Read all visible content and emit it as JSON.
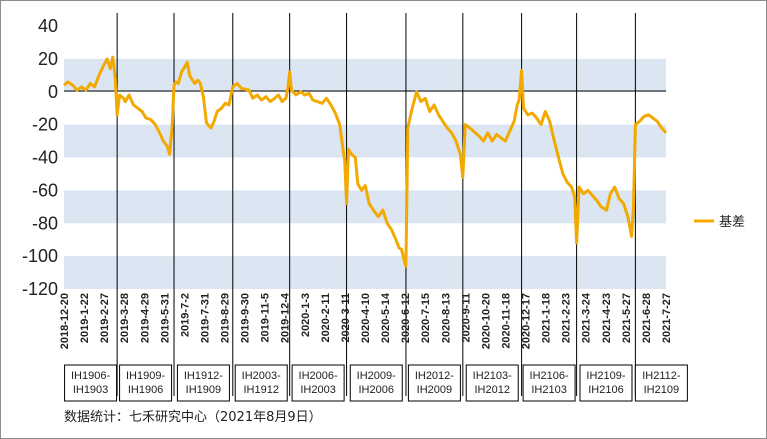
{
  "chart_data": {
    "type": "line",
    "ylim": [
      -120,
      40
    ],
    "yticks": [
      40,
      20,
      0,
      -20,
      -40,
      -60,
      -80,
      -100,
      -120
    ],
    "x_range": [
      "2018-12-20",
      "2021-08-09"
    ],
    "x_ticks": [
      "2018-12-20",
      "2019-1-22",
      "2019-2-27",
      "2019-3-28",
      "2019-4-29",
      "2019-5-31",
      "2019-7-2",
      "2019-7-31",
      "2019-8-29",
      "2019-9-30",
      "2019-11-5",
      "2019-12-4",
      "2020-1-3",
      "2020-2-11",
      "2020-3-11",
      "2020-4-10",
      "2020-5-14",
      "2020-6-12",
      "2020-7-15",
      "2020-8-13",
      "2020-9-11",
      "2020-10-20",
      "2020-11-18",
      "2020-12-17",
      "2021-1-18",
      "2021-2-23",
      "2021-3-24",
      "2021-4-23",
      "2021-5-27",
      "2021-6-28",
      "2021-7-27"
    ],
    "grid": "alternating horizontal bands",
    "legend_position": "right",
    "colors": {
      "series": "#f2a900",
      "band": "#dce6f2",
      "divider": "#000000"
    },
    "series": [
      {
        "name": "基差",
        "points": [
          [
            "2018-12-20",
            4
          ],
          [
            "2018-12-26",
            6
          ],
          [
            "2019-1-3",
            4
          ],
          [
            "2019-1-10",
            1
          ],
          [
            "2019-1-17",
            3
          ],
          [
            "2019-1-24",
            1
          ],
          [
            "2019-1-31",
            5
          ],
          [
            "2019-2-7",
            3
          ],
          [
            "2019-2-14",
            10
          ],
          [
            "2019-2-20",
            15
          ],
          [
            "2019-2-27",
            20
          ],
          [
            "2019-3-4",
            14
          ],
          [
            "2019-3-8",
            21
          ],
          [
            "2019-3-12",
            8
          ],
          [
            "2019-3-15",
            -14
          ],
          [
            "2019-3-19",
            -2
          ],
          [
            "2019-3-25",
            -4
          ],
          [
            "2019-3-28",
            -6
          ],
          [
            "2019-4-3",
            -2
          ],
          [
            "2019-4-10",
            -8
          ],
          [
            "2019-4-17",
            -10
          ],
          [
            "2019-4-24",
            -12
          ],
          [
            "2019-4-30",
            -16
          ],
          [
            "2019-5-8",
            -17
          ],
          [
            "2019-5-15",
            -20
          ],
          [
            "2019-5-22",
            -25
          ],
          [
            "2019-5-28",
            -30
          ],
          [
            "2019-6-3",
            -33
          ],
          [
            "2019-6-7",
            -38
          ],
          [
            "2019-6-11",
            -22
          ],
          [
            "2019-6-14",
            4
          ],
          [
            "2019-6-17",
            6
          ],
          [
            "2019-6-21",
            5
          ],
          [
            "2019-6-26",
            12
          ],
          [
            "2019-7-1",
            15
          ],
          [
            "2019-7-5",
            18
          ],
          [
            "2019-7-9",
            10
          ],
          [
            "2019-7-12",
            8
          ],
          [
            "2019-7-17",
            5
          ],
          [
            "2019-7-22",
            7
          ],
          [
            "2019-7-26",
            5
          ],
          [
            "2019-7-31",
            -3
          ],
          [
            "2019-8-5",
            -19
          ],
          [
            "2019-8-12",
            -22
          ],
          [
            "2019-8-16",
            -19
          ],
          [
            "2019-8-22",
            -12
          ],
          [
            "2019-8-29",
            -10
          ],
          [
            "2019-9-4",
            -7
          ],
          [
            "2019-9-10",
            -8
          ],
          [
            "2019-9-16",
            3
          ],
          [
            "2019-9-23",
            5
          ],
          [
            "2019-9-30",
            2
          ],
          [
            "2019-10-12",
            1
          ],
          [
            "2019-10-18",
            -4
          ],
          [
            "2019-10-25",
            -2
          ],
          [
            "2019-11-1",
            -5
          ],
          [
            "2019-11-8",
            -3
          ],
          [
            "2019-11-15",
            -6
          ],
          [
            "2019-11-22",
            -4
          ],
          [
            "2019-11-28",
            -2
          ],
          [
            "2019-12-4",
            -6
          ],
          [
            "2019-12-10",
            -4
          ],
          [
            "2019-12-13",
            2
          ],
          [
            "2019-12-16",
            12
          ],
          [
            "2019-12-19",
            1
          ],
          [
            "2019-12-26",
            -2
          ],
          [
            "2020-1-3",
            0
          ],
          [
            "2020-1-9",
            -2
          ],
          [
            "2020-1-16",
            -1
          ],
          [
            "2020-1-22",
            -5
          ],
          [
            "2020-2-6",
            -7
          ],
          [
            "2020-2-13",
            -4
          ],
          [
            "2020-2-20",
            -8
          ],
          [
            "2020-2-27",
            -13
          ],
          [
            "2020-3-5",
            -20
          ],
          [
            "2020-3-10",
            -34
          ],
          [
            "2020-3-13",
            -42
          ],
          [
            "2020-3-16",
            -68
          ],
          [
            "2020-3-19",
            -35
          ],
          [
            "2020-3-24",
            -38
          ],
          [
            "2020-3-30",
            -40
          ],
          [
            "2020-4-3",
            -56
          ],
          [
            "2020-4-9",
            -60
          ],
          [
            "2020-4-15",
            -57
          ],
          [
            "2020-4-21",
            -68
          ],
          [
            "2020-4-28",
            -72
          ],
          [
            "2020-5-6",
            -76
          ],
          [
            "2020-5-13",
            -72
          ],
          [
            "2020-5-20",
            -80
          ],
          [
            "2020-5-27",
            -84
          ],
          [
            "2020-6-3",
            -90
          ],
          [
            "2020-6-8",
            -95
          ],
          [
            "2020-6-12",
            -96
          ],
          [
            "2020-6-17",
            -104
          ],
          [
            "2020-6-19",
            -106
          ],
          [
            "2020-6-22",
            -22
          ],
          [
            "2020-6-29",
            -10
          ],
          [
            "2020-7-6",
            0
          ],
          [
            "2020-7-13",
            -6
          ],
          [
            "2020-7-20",
            -4
          ],
          [
            "2020-7-27",
            -12
          ],
          [
            "2020-8-3",
            -8
          ],
          [
            "2020-8-10",
            -14
          ],
          [
            "2020-8-17",
            -18
          ],
          [
            "2020-8-24",
            -22
          ],
          [
            "2020-8-31",
            -25
          ],
          [
            "2020-9-7",
            -30
          ],
          [
            "2020-9-14",
            -38
          ],
          [
            "2020-9-18",
            -52
          ],
          [
            "2020-9-22",
            -20
          ],
          [
            "2020-9-29",
            -22
          ],
          [
            "2020-10-14",
            -27
          ],
          [
            "2020-10-21",
            -30
          ],
          [
            "2020-10-28",
            -25
          ],
          [
            "2020-11-4",
            -30
          ],
          [
            "2020-11-11",
            -26
          ],
          [
            "2020-11-18",
            -28
          ],
          [
            "2020-11-25",
            -30
          ],
          [
            "2020-12-2",
            -24
          ],
          [
            "2020-12-9",
            -18
          ],
          [
            "2020-12-14",
            -8
          ],
          [
            "2020-12-17",
            -5
          ],
          [
            "2020-12-21",
            13
          ],
          [
            "2020-12-24",
            -10
          ],
          [
            "2020-12-31",
            -14
          ],
          [
            "2021-1-7",
            -13
          ],
          [
            "2021-1-14",
            -16
          ],
          [
            "2021-1-21",
            -20
          ],
          [
            "2021-1-28",
            -12
          ],
          [
            "2021-2-4",
            -18
          ],
          [
            "2021-2-10",
            -28
          ],
          [
            "2021-2-18",
            -40
          ],
          [
            "2021-2-25",
            -50
          ],
          [
            "2021-3-4",
            -55
          ],
          [
            "2021-3-11",
            -58
          ],
          [
            "2021-3-16",
            -64
          ],
          [
            "2021-3-19",
            -92
          ],
          [
            "2021-3-23",
            -58
          ],
          [
            "2021-3-30",
            -62
          ],
          [
            "2021-4-6",
            -60
          ],
          [
            "2021-4-13",
            -63
          ],
          [
            "2021-4-20",
            -66
          ],
          [
            "2021-4-27",
            -70
          ],
          [
            "2021-5-6",
            -72
          ],
          [
            "2021-5-12",
            -62
          ],
          [
            "2021-5-19",
            -58
          ],
          [
            "2021-5-26",
            -65
          ],
          [
            "2021-6-2",
            -68
          ],
          [
            "2021-6-9",
            -76
          ],
          [
            "2021-6-15",
            -88
          ],
          [
            "2021-6-18",
            -70
          ],
          [
            "2021-6-21",
            -20
          ],
          [
            "2021-6-28",
            -18
          ],
          [
            "2021-7-5",
            -15
          ],
          [
            "2021-7-12",
            -14
          ],
          [
            "2021-7-19",
            -16
          ],
          [
            "2021-7-26",
            -18
          ],
          [
            "2021-8-2",
            -22
          ],
          [
            "2021-8-9",
            -25
          ]
        ]
      }
    ],
    "contract_dividers": [
      "2019-3-15",
      "2019-6-14",
      "2019-9-16",
      "2019-12-16",
      "2020-3-16",
      "2020-6-19",
      "2020-9-18",
      "2020-12-21",
      "2021-3-19",
      "2021-6-21"
    ],
    "contract_labels": [
      [
        "IH1906-",
        "IH1903"
      ],
      [
        "IH1909-",
        "IH1906"
      ],
      [
        "IH1912-",
        "IH1909"
      ],
      [
        "IH2003-",
        "IH1912"
      ],
      [
        "IH2006-",
        "IH2003"
      ],
      [
        "IH2009-",
        "IH2006"
      ],
      [
        "IH2012-",
        "IH2009"
      ],
      [
        "IH2103-",
        "IH2012"
      ],
      [
        "IH2106-",
        "IH2103"
      ],
      [
        "IH2109-",
        "IH2106"
      ],
      [
        "IH2112-",
        "IH2109"
      ]
    ]
  },
  "legend": {
    "label": "基差"
  },
  "source": "数据统计：七禾研究中心（2021年8月9日）"
}
